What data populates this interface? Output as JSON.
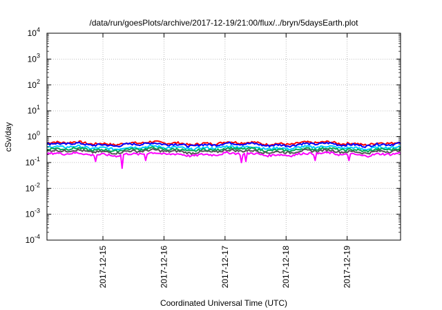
{
  "chart_data": {
    "type": "line",
    "title": "/data/run/goesPlots/archive/2017-12-19/21:00/flux/../bryn/5daysEarth.plot",
    "xlabel": "Coordinated Universal Time (UTC)",
    "ylabel": "cSv/day",
    "yscale": "log",
    "ylim": [
      0.0001,
      10000
    ],
    "yticks": [
      {
        "value": 0.0001,
        "base": "10",
        "exp": "-4"
      },
      {
        "value": 0.001,
        "base": "10",
        "exp": "-3"
      },
      {
        "value": 0.01,
        "base": "10",
        "exp": "-2"
      },
      {
        "value": 0.1,
        "base": "10",
        "exp": "-1"
      },
      {
        "value": 1,
        "base": "10",
        "exp": "0"
      },
      {
        "value": 10,
        "base": "10",
        "exp": "1"
      },
      {
        "value": 100,
        "base": "10",
        "exp": "2"
      },
      {
        "value": 1000,
        "base": "10",
        "exp": "3"
      },
      {
        "value": 10000,
        "base": "10",
        "exp": "4"
      }
    ],
    "xlim": [
      "2017-12-14T02:00",
      "2017-12-19T21:00"
    ],
    "xticks": [
      "2017-12-15",
      "2017-12-16",
      "2017-12-17",
      "2017-12-18",
      "2017-12-19"
    ],
    "grid": true,
    "series": [
      {
        "color": "#ff0000",
        "level": 0.56,
        "dips": []
      },
      {
        "color": "#0000ff",
        "level": 0.5,
        "dips": []
      },
      {
        "color": "#00ccff",
        "level": 0.38,
        "dips": []
      },
      {
        "color": "#00aa55",
        "level": 0.32,
        "dips": []
      },
      {
        "color": "#555555",
        "level": 0.27,
        "dips": []
      },
      {
        "color": "#ff00ff",
        "level": 0.21,
        "dips": [
          {
            "t": "2017-12-14T21:00",
            "v": 0.11
          },
          {
            "t": "2017-12-15T07:30",
            "v": 0.06
          },
          {
            "t": "2017-12-15T16:40",
            "v": 0.12
          },
          {
            "t": "2017-12-17T06:20",
            "v": 0.1
          },
          {
            "t": "2017-12-17T08:00",
            "v": 0.11
          },
          {
            "t": "2017-12-18T11:10",
            "v": 0.12
          },
          {
            "t": "2017-12-19T00:30",
            "v": 0.12
          }
        ]
      }
    ]
  }
}
